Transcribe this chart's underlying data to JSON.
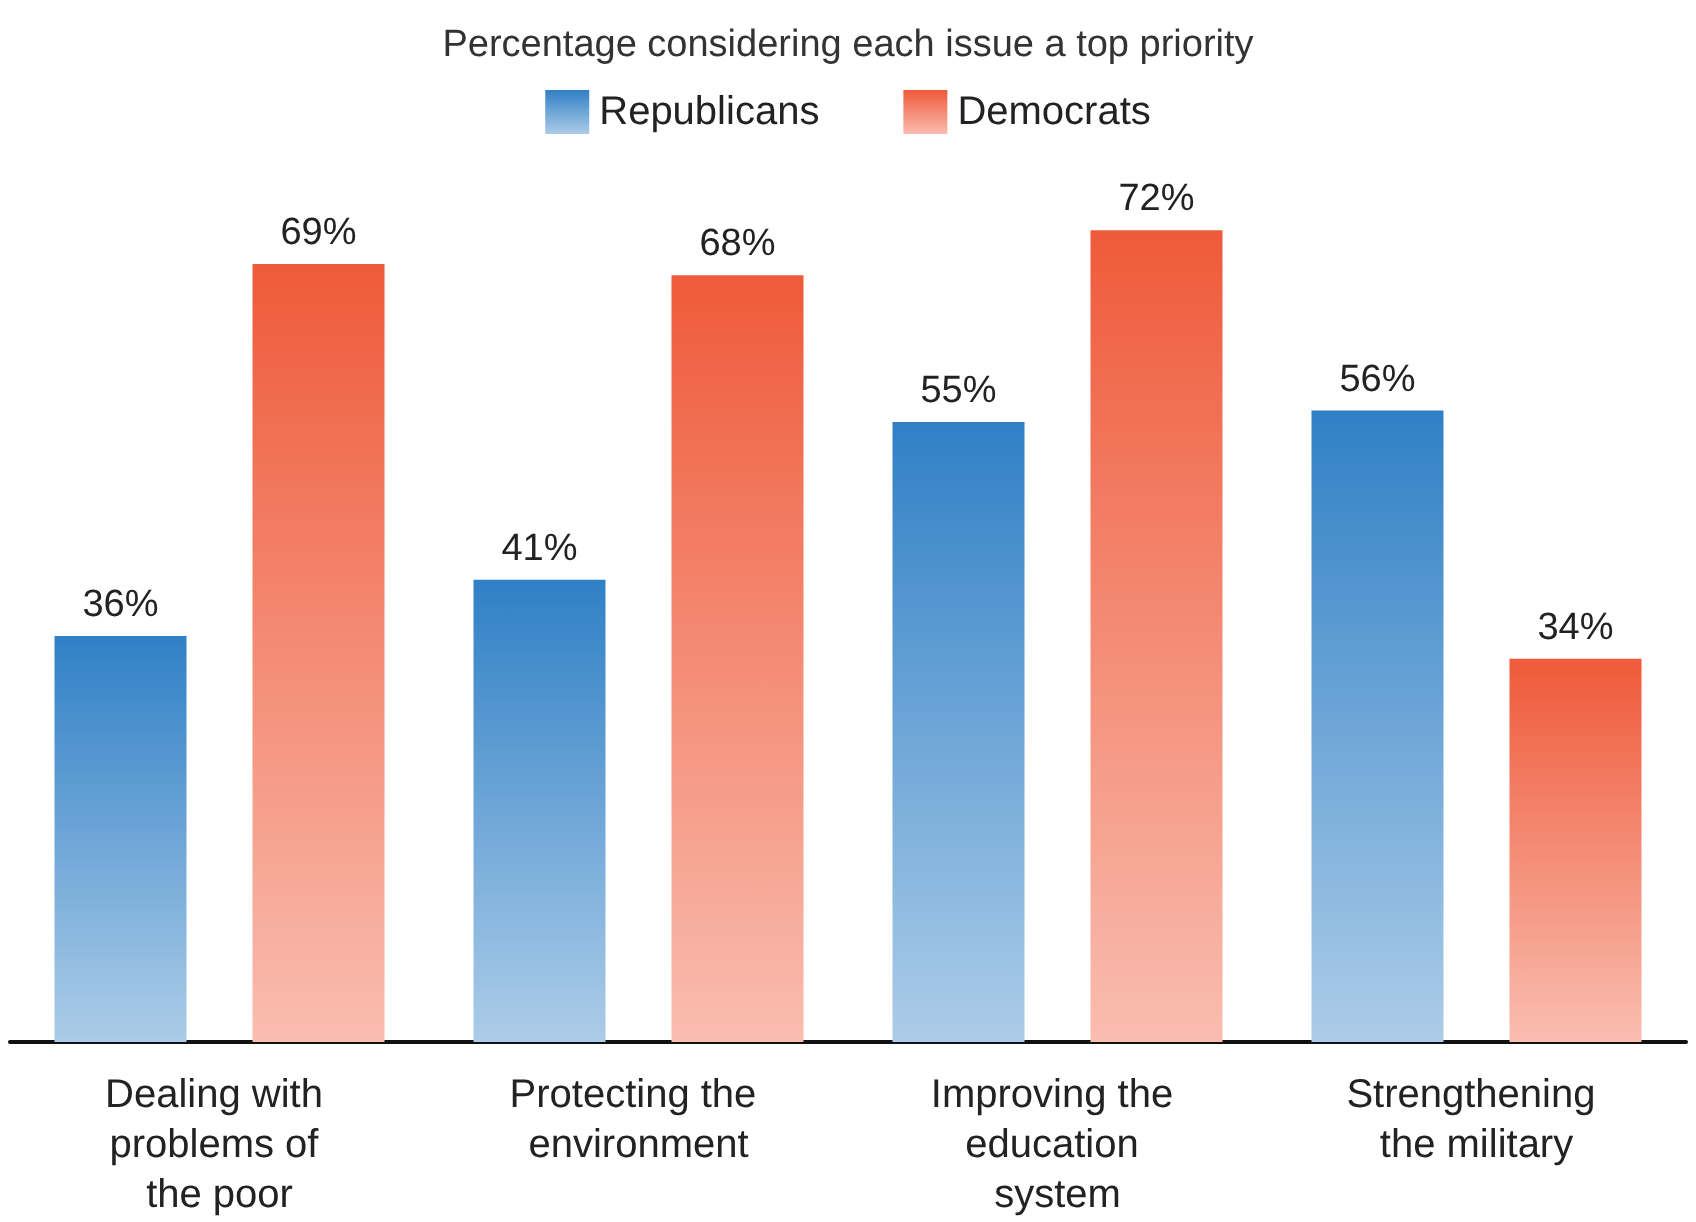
{
  "chart_data": {
    "type": "bar",
    "title": "Percentage considering each issue a top priority",
    "categories": [
      "Dealing with problems of the poor",
      "Protecting the environment",
      "Improving the education system",
      "Strengthening the military"
    ],
    "series": [
      {
        "name": "Republicans",
        "color": "#3080c6",
        "values": [
          36,
          41,
          55,
          56
        ],
        "value_labels": [
          "36%",
          "41%",
          "55%",
          "56%"
        ]
      },
      {
        "name": "Democrats",
        "color": "#ef5a3a",
        "values": [
          69,
          68,
          72,
          34
        ],
        "value_labels": [
          "69%",
          "68%",
          "72%",
          "34%"
        ]
      }
    ],
    "legend": "top",
    "grid": false
  }
}
